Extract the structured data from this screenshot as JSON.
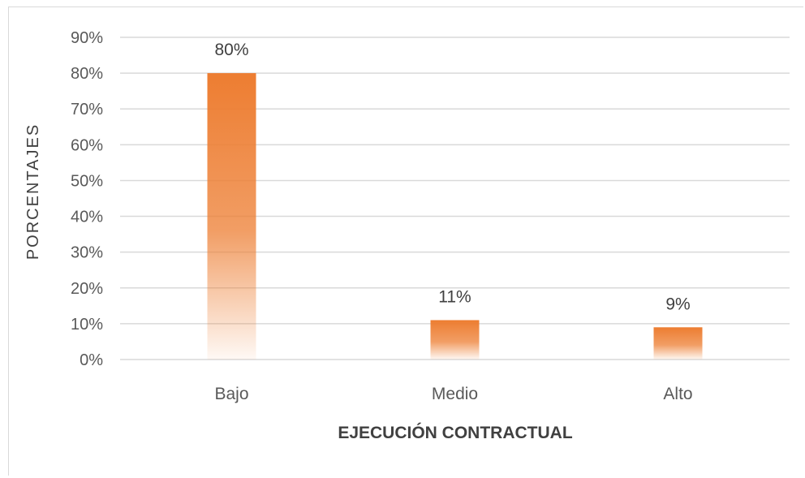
{
  "chart_data": {
    "type": "bar",
    "categories": [
      "Bajo",
      "Medio",
      "Alto"
    ],
    "values": [
      80,
      11,
      9
    ],
    "data_labels": [
      "80%",
      "11%",
      "9%"
    ],
    "xlabel": "EJECUCIÓN CONTRACTUAL",
    "ylabel": "PORCENTAJES",
    "ylim": [
      0,
      90
    ],
    "yticks": [
      "0%",
      "10%",
      "20%",
      "30%",
      "40%",
      "50%",
      "60%",
      "70%",
      "80%",
      "90%"
    ],
    "grid": true,
    "bar_color": "#ed7d31",
    "gridline_color": "#d9d9d9"
  }
}
